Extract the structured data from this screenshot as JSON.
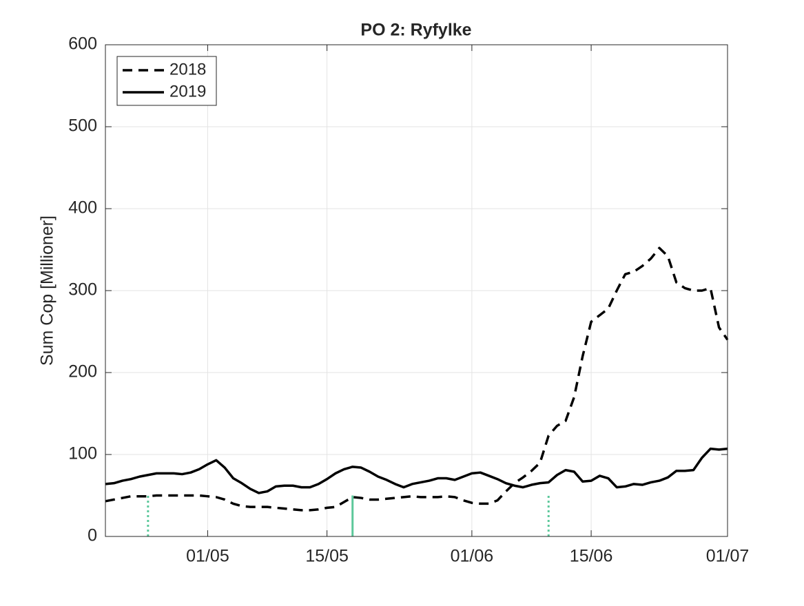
{
  "chart_data": {
    "type": "line",
    "title": "PO 2: Ryfylke",
    "ylabel": "Sum Cop [Millioner]",
    "x": [
      "19/04",
      "20/04",
      "21/04",
      "22/04",
      "23/04",
      "24/04",
      "25/04",
      "26/04",
      "27/04",
      "28/04",
      "29/04",
      "30/04",
      "01/05",
      "02/05",
      "03/05",
      "04/05",
      "05/05",
      "06/05",
      "07/05",
      "08/05",
      "09/05",
      "10/05",
      "11/05",
      "12/05",
      "13/05",
      "14/05",
      "15/05",
      "16/05",
      "17/05",
      "18/05",
      "19/05",
      "20/05",
      "21/05",
      "22/05",
      "23/05",
      "24/05",
      "25/05",
      "26/05",
      "27/05",
      "28/05",
      "29/05",
      "30/05",
      "31/05",
      "01/06",
      "02/06",
      "03/06",
      "04/06",
      "05/06",
      "06/06",
      "07/06",
      "08/06",
      "09/06",
      "10/06",
      "11/06",
      "12/06",
      "13/06",
      "14/06",
      "15/06",
      "16/06",
      "17/06",
      "18/06",
      "19/06",
      "20/06",
      "21/06",
      "22/06",
      "23/06",
      "24/06",
      "25/06",
      "26/06",
      "27/06",
      "28/06",
      "29/06",
      "30/06",
      "01/07"
    ],
    "series": [
      {
        "name": "2018",
        "color": "#000000",
        "dash": true,
        "values": [
          43,
          45,
          47,
          49,
          49,
          49,
          50,
          50,
          50,
          50,
          50,
          50,
          49,
          48,
          45,
          40,
          37,
          36,
          36,
          36,
          35,
          34,
          33,
          32,
          32,
          33,
          35,
          36,
          42,
          48,
          47,
          45,
          45,
          46,
          47,
          48,
          49,
          48,
          48,
          48,
          49,
          48,
          44,
          41,
          40,
          40,
          44,
          55,
          65,
          72,
          80,
          90,
          123,
          135,
          141,
          170,
          220,
          262,
          270,
          278,
          300,
          320,
          323,
          330,
          339,
          352,
          342,
          310,
          303,
          300,
          300,
          303,
          255,
          240
        ]
      },
      {
        "name": "2019",
        "color": "#000000",
        "dash": false,
        "values": [
          64,
          65,
          68,
          70,
          73,
          75,
          77,
          77,
          77,
          76,
          78,
          82,
          88,
          93,
          84,
          71,
          65,
          58,
          53,
          55,
          61,
          62,
          62,
          60,
          60,
          64,
          70,
          77,
          82,
          85,
          84,
          79,
          73,
          69,
          64,
          60,
          64,
          66,
          68,
          71,
          71,
          69,
          73,
          77,
          78,
          74,
          70,
          65,
          62,
          60,
          63,
          65,
          66,
          75,
          81,
          79,
          67,
          68,
          74,
          71,
          60,
          61,
          64,
          63,
          66,
          68,
          72,
          80,
          80,
          81,
          96,
          107,
          106,
          107
        ]
      }
    ],
    "markers": [
      {
        "x": "24/04",
        "value": 50,
        "dotted": true
      },
      {
        "x": "18/05",
        "value": 50,
        "dotted": false
      },
      {
        "x": "10/06",
        "value": 50,
        "dotted": true
      }
    ],
    "marker_color": "#5cc89b",
    "xlim": [
      "19/04",
      "01/07"
    ],
    "xticks": [
      "01/05",
      "15/05",
      "01/06",
      "15/06",
      "01/07"
    ],
    "ylim": [
      0,
      600
    ],
    "yticks": [
      0,
      100,
      200,
      300,
      400,
      500,
      600
    ],
    "grid": true,
    "legend": "upper-left"
  }
}
